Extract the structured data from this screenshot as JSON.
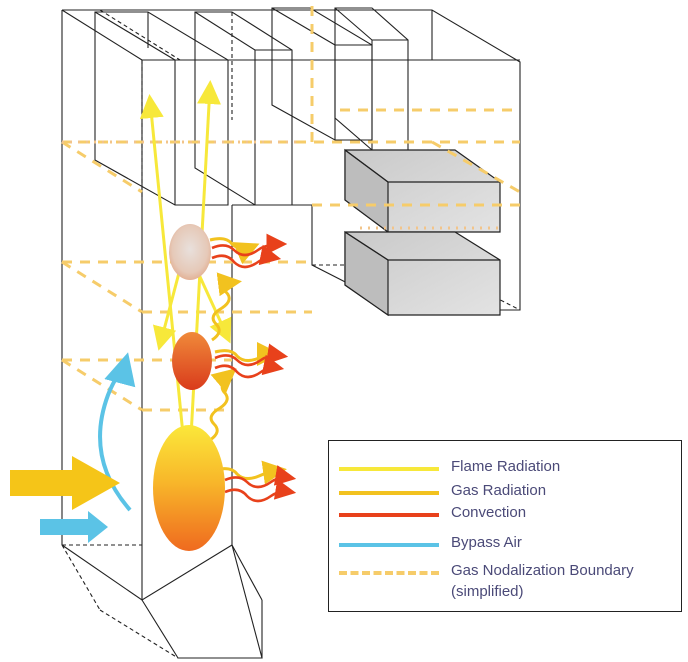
{
  "legend": {
    "items": [
      {
        "label": "Flame Radiation",
        "color": "#f7e83a",
        "style": "solid"
      },
      {
        "label": "Gas Radiation",
        "color": "#f2c21f",
        "style": "solid"
      },
      {
        "label": "Convection",
        "color": "#e8411b",
        "style": "solid"
      },
      {
        "label": "Bypass Air",
        "color": "#5bc3e6",
        "style": "solid"
      },
      {
        "label": "Gas Nodalization Boundary",
        "label_line2": "(simplified)",
        "color": "#f6cc6a",
        "style": "dashed"
      }
    ]
  },
  "colors": {
    "outline": "#222222",
    "nodalization_dash": "#f6cc6a",
    "bypass_air": "#5bc3e6",
    "inlet_arrow": "#f5c518"
  }
}
